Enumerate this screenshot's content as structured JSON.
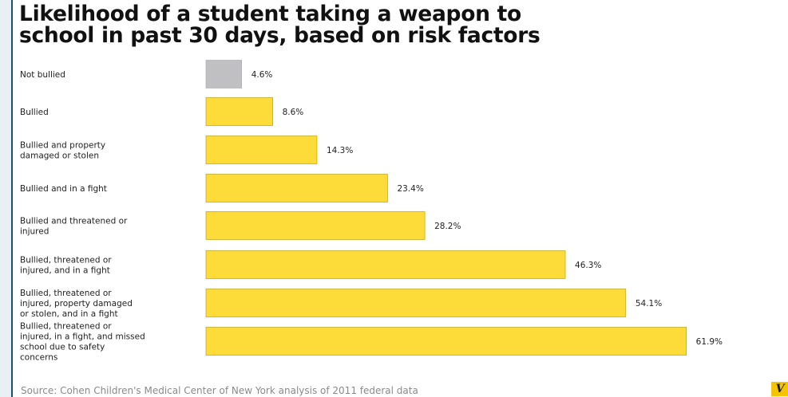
{
  "title_line1": "Likelihood of a student taking a weapon to",
  "title_line2": "school in past 30 days, based on risk factors",
  "source": "Source: Cohen Children's Medical Center of New York analysis of 2011 federal data",
  "logo_text": "V",
  "colors": {
    "baseline_bar": "#c0c0c3",
    "highlight_bar": "#fddc3a",
    "bar_stroke": "#b39400"
  },
  "chart_data": {
    "type": "bar",
    "orientation": "horizontal",
    "title": "Likelihood of a student taking a weapon to school in past 30 days, based on risk factors",
    "categories": [
      [
        "Not bullied"
      ],
      [
        "Bullied"
      ],
      [
        "Bullied and property",
        "damaged or stolen"
      ],
      [
        "Bullied and in a fight"
      ],
      [
        "Bullied and threatened or",
        "injured"
      ],
      [
        "Bullied, threatened or",
        "injured, and in a fight"
      ],
      [
        "Bullied, threatened or",
        "injured, property damaged",
        "or stolen, and in a fight"
      ],
      [
        "Bullied, threatened or",
        "injured, in a fight, and missed",
        "school due to safety",
        "concerns"
      ]
    ],
    "values": [
      4.6,
      8.6,
      14.3,
      23.4,
      28.2,
      46.3,
      54.1,
      61.9
    ],
    "value_labels": [
      "4.6%",
      "8.6%",
      "14.3%",
      "23.4%",
      "28.2%",
      "46.3%",
      "54.1%",
      "61.9%"
    ],
    "bar_colors": [
      "baseline",
      "highlight",
      "highlight",
      "highlight",
      "highlight",
      "highlight",
      "highlight",
      "highlight"
    ],
    "unit": "%",
    "xlim": [
      0,
      70
    ],
    "grid": false,
    "legend": "none"
  }
}
